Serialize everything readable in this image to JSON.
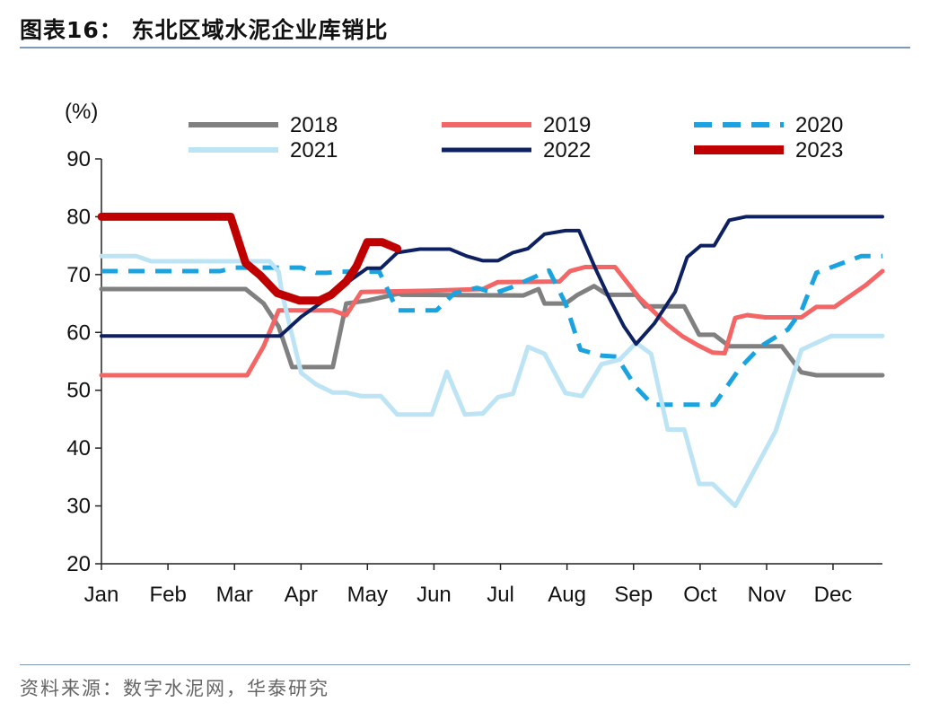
{
  "header": {
    "title": "图表16：  东北区域水泥企业库销比"
  },
  "footer": {
    "source": "资料来源：数字水泥网，华泰研究"
  },
  "chart_data": {
    "type": "line",
    "ylabel": "(%)",
    "ylim": [
      20,
      90
    ],
    "yticks": [
      "20",
      "30",
      "40",
      "50",
      "60",
      "70",
      "80",
      "90"
    ],
    "xlim": [
      0,
      52
    ],
    "xtick_labels": [
      "Jan",
      "Feb",
      "Mar",
      "Apr",
      "May",
      "Jun",
      "Jul",
      "Aug",
      "Sep",
      "Oct",
      "Nov",
      "Dec"
    ],
    "xtick_positions": [
      0,
      4.43,
      8.86,
      13.29,
      17.71,
      22.14,
      26.57,
      31,
      35.43,
      39.86,
      44.29,
      48.71
    ],
    "legend_placement": "top",
    "series": [
      {
        "name": "2018",
        "color": "#808080",
        "style": "solid",
        "width": 5,
        "points": [
          [
            0,
            67.5
          ],
          [
            9.6,
            67.5
          ],
          [
            10.8,
            65
          ],
          [
            11.8,
            61
          ],
          [
            12.7,
            54
          ],
          [
            15.4,
            54
          ],
          [
            16.3,
            65
          ],
          [
            17.7,
            65.5
          ],
          [
            19.8,
            66.7
          ],
          [
            20,
            66.5
          ],
          [
            28.1,
            66.4
          ],
          [
            29.1,
            67.5
          ],
          [
            29.5,
            65
          ],
          [
            30.9,
            65
          ],
          [
            31.7,
            66.5
          ],
          [
            32.8,
            68
          ],
          [
            33.7,
            66.5
          ],
          [
            35.6,
            66.5
          ],
          [
            36.2,
            64.5
          ],
          [
            38.8,
            64.5
          ],
          [
            39.8,
            59.6
          ],
          [
            40.8,
            59.6
          ],
          [
            41.8,
            57.6
          ],
          [
            45.3,
            57.6
          ],
          [
            46.6,
            53.1
          ],
          [
            47.6,
            52.6
          ],
          [
            52,
            52.6
          ]
        ]
      },
      {
        "name": "2019",
        "color": "#f46666",
        "style": "solid",
        "width": 5,
        "points": [
          [
            0,
            52.6
          ],
          [
            9.7,
            52.6
          ],
          [
            10.8,
            57.6
          ],
          [
            11.8,
            63.8
          ],
          [
            15.4,
            63.8
          ],
          [
            16.3,
            63
          ],
          [
            17.3,
            67
          ],
          [
            21.7,
            67.2
          ],
          [
            25.4,
            67.5
          ],
          [
            26.4,
            68.7
          ],
          [
            30.5,
            68.8
          ],
          [
            31.2,
            70.6
          ],
          [
            32.2,
            71.3
          ],
          [
            34.2,
            71.3
          ],
          [
            35.8,
            66
          ],
          [
            37.7,
            61.3
          ],
          [
            38.7,
            59.3
          ],
          [
            39.7,
            57.8
          ],
          [
            40.7,
            56.5
          ],
          [
            41.5,
            56.4
          ],
          [
            42.2,
            62.5
          ],
          [
            43,
            63
          ],
          [
            44.2,
            62.6
          ],
          [
            46.6,
            62.6
          ],
          [
            47.6,
            64.4
          ],
          [
            48.8,
            64.4
          ],
          [
            50.9,
            68.2
          ],
          [
            52,
            70.6
          ]
        ]
      },
      {
        "name": "2020",
        "color": "#1ba3e0",
        "style": "dashed",
        "width": 5,
        "points": [
          [
            0,
            70.6
          ],
          [
            7.9,
            70.6
          ],
          [
            8.9,
            71.2
          ],
          [
            12.4,
            71.2
          ],
          [
            13.3,
            71.2
          ],
          [
            14.3,
            70.3
          ],
          [
            15,
            70.3
          ],
          [
            16,
            70.5
          ],
          [
            18.5,
            70.5
          ],
          [
            19.7,
            63.8
          ],
          [
            22.3,
            63.8
          ],
          [
            23.5,
            66.8
          ],
          [
            25,
            67.7
          ],
          [
            26.2,
            66.8
          ],
          [
            27.3,
            67.8
          ],
          [
            29.8,
            70.7
          ],
          [
            30.9,
            65
          ],
          [
            31.9,
            57
          ],
          [
            33.3,
            56
          ],
          [
            34.3,
            55.8
          ],
          [
            35.6,
            50.5
          ],
          [
            36.7,
            47.5
          ],
          [
            40.8,
            47.5
          ],
          [
            42.5,
            53.8
          ],
          [
            43.9,
            57.6
          ],
          [
            45.7,
            60.5
          ],
          [
            46.6,
            63.7
          ],
          [
            47.6,
            70.3
          ],
          [
            50.6,
            73.2
          ],
          [
            52,
            73.2
          ]
        ]
      },
      {
        "name": "2021",
        "color": "#bde4f5",
        "style": "solid",
        "width": 5,
        "points": [
          [
            0,
            73.2
          ],
          [
            2.3,
            73.2
          ],
          [
            3.3,
            72.3
          ],
          [
            11.2,
            72.3
          ],
          [
            11.8,
            70.5
          ],
          [
            12,
            67
          ],
          [
            13.3,
            53
          ],
          [
            14.3,
            51
          ],
          [
            15.4,
            49.6
          ],
          [
            16.3,
            49.6
          ],
          [
            17.3,
            49
          ],
          [
            18.6,
            49
          ],
          [
            19.7,
            45.8
          ],
          [
            22,
            45.8
          ],
          [
            23,
            53.2
          ],
          [
            24.2,
            45.8
          ],
          [
            25.4,
            46
          ],
          [
            26.4,
            48.8
          ],
          [
            27.4,
            49.4
          ],
          [
            28.4,
            57.5
          ],
          [
            29.5,
            56.3
          ],
          [
            30.9,
            49.5
          ],
          [
            32,
            49
          ],
          [
            33.3,
            54.5
          ],
          [
            34.5,
            55.3
          ],
          [
            35.6,
            58.2
          ],
          [
            36.6,
            56.3
          ],
          [
            37.7,
            43.2
          ],
          [
            38.8,
            43.2
          ],
          [
            39.8,
            33.8
          ],
          [
            40.7,
            33.8
          ],
          [
            42.2,
            30
          ],
          [
            44.9,
            43
          ],
          [
            46.6,
            57
          ],
          [
            48.6,
            59.4
          ],
          [
            52,
            59.4
          ]
        ]
      },
      {
        "name": "2022",
        "color": "#0d2162",
        "style": "solid",
        "width": 4,
        "points": [
          [
            0,
            59.4
          ],
          [
            11.9,
            59.4
          ],
          [
            13.3,
            62.7
          ],
          [
            15.1,
            66
          ],
          [
            16.3,
            68.5
          ],
          [
            17.7,
            71.1
          ],
          [
            18.6,
            71.1
          ],
          [
            19.7,
            73.8
          ],
          [
            21.2,
            74.4
          ],
          [
            23.2,
            74.4
          ],
          [
            24.3,
            73.2
          ],
          [
            25.4,
            72.4
          ],
          [
            26.4,
            72.4
          ],
          [
            27.4,
            73.8
          ],
          [
            28.4,
            74.5
          ],
          [
            29.5,
            77
          ],
          [
            30.9,
            77.6
          ],
          [
            31.8,
            77.6
          ],
          [
            32.9,
            71
          ],
          [
            33.8,
            66
          ],
          [
            34.8,
            61
          ],
          [
            35.6,
            58
          ],
          [
            36.8,
            61.5
          ],
          [
            38.2,
            67
          ],
          [
            39,
            73
          ],
          [
            39.9,
            75
          ],
          [
            40.8,
            75
          ],
          [
            41.8,
            79.4
          ],
          [
            42.9,
            80
          ],
          [
            52,
            80
          ]
        ]
      },
      {
        "name": "2023",
        "color": "#c00000",
        "style": "solid",
        "width": 9,
        "points": [
          [
            0,
            80
          ],
          [
            8.6,
            80
          ],
          [
            9.6,
            72
          ],
          [
            10.6,
            69.8
          ],
          [
            11.7,
            66.8
          ],
          [
            13.2,
            65.5
          ],
          [
            14.5,
            65.5
          ],
          [
            15.3,
            66.5
          ],
          [
            16.3,
            68.8
          ],
          [
            17,
            71.5
          ],
          [
            17.7,
            75.6
          ],
          [
            18.7,
            75.6
          ],
          [
            19.7,
            74.5
          ]
        ]
      }
    ]
  }
}
